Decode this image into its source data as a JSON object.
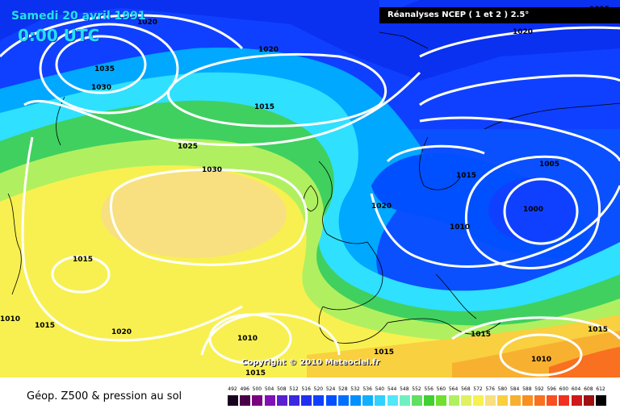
{
  "header": {
    "date": "Samedi 20 avril 1991",
    "time": "0:00 UTC",
    "source": "Réanalyses NCEP ( 1 et 2 ) 2.5°"
  },
  "copyright": "Copyright © 2010 Meteociel.fr",
  "footer": {
    "title": "Géop. Z500 & pression au sol"
  },
  "isobar_labels": [
    "1020",
    "1035",
    "1030",
    "1020",
    "1015",
    "1025",
    "1030",
    "1020",
    "1015",
    "1005",
    "1000",
    "1010",
    "1015",
    "1020",
    "1015",
    "1010",
    "1015",
    "1015",
    "1015",
    "1010",
    "1015",
    "1020",
    "1010",
    "1015"
  ],
  "colorbar": {
    "labels": [
      "492",
      "496",
      "500",
      "504",
      "508",
      "512",
      "516",
      "520",
      "524",
      "528",
      "532",
      "536",
      "540",
      "544",
      "548",
      "552",
      "556",
      "560",
      "564",
      "568",
      "572",
      "576",
      "580",
      "584",
      "588",
      "592",
      "596",
      "600",
      "604",
      "608",
      "612"
    ],
    "colors": [
      "#1a0020",
      "#4a0048",
      "#7a0080",
      "#8010b8",
      "#5a20d0",
      "#3a28e0",
      "#2030f0",
      "#1040ff",
      "#0050ff",
      "#0070ff",
      "#0090ff",
      "#10b0ff",
      "#30d0ff",
      "#50e8f8",
      "#70f0c0",
      "#60e060",
      "#40d030",
      "#70e030",
      "#b0f060",
      "#e0f060",
      "#f8f050",
      "#f8e080",
      "#f8d040",
      "#f8b030",
      "#f89020",
      "#f87020",
      "#f85020",
      "#f03020",
      "#d01818",
      "#a01010",
      "#000000"
    ]
  }
}
